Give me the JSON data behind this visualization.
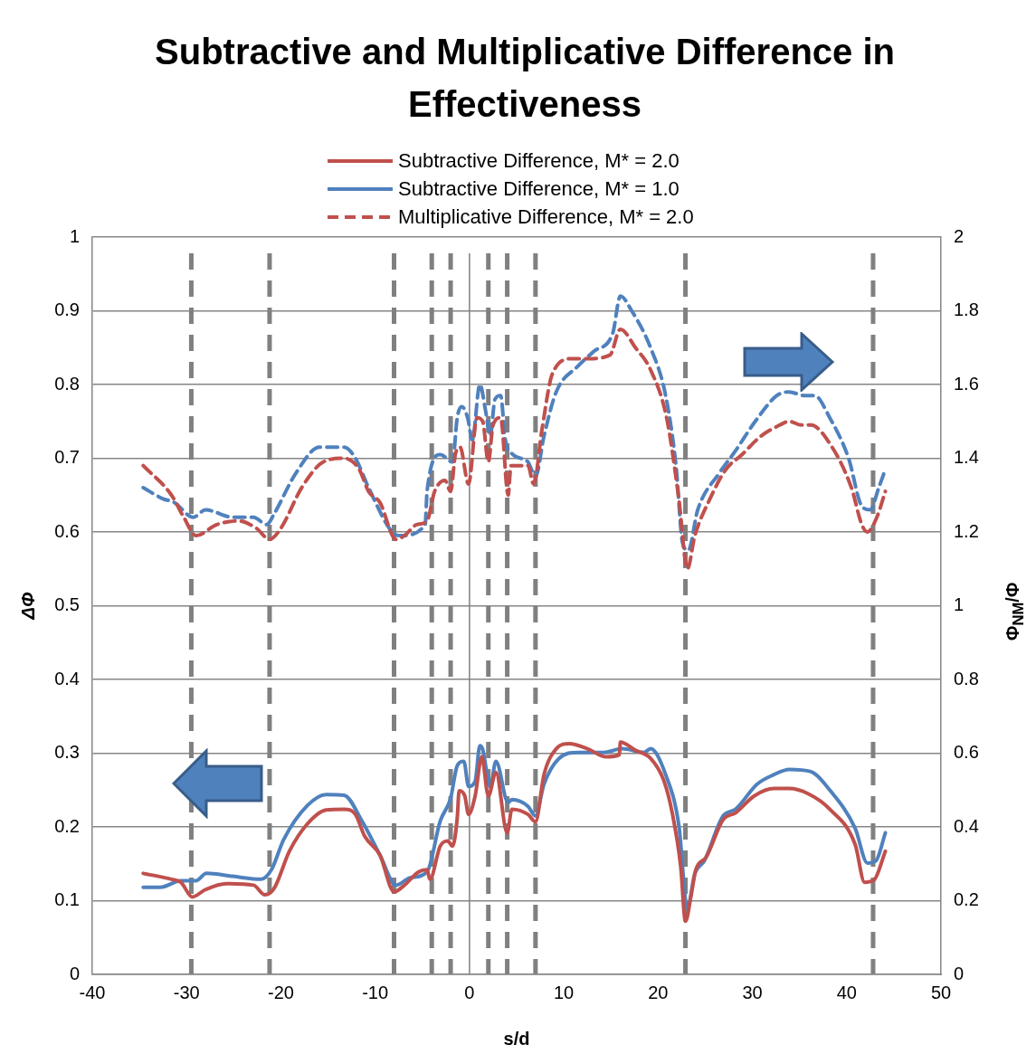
{
  "chart_data": {
    "type": "line",
    "title": "Subtractive and Multiplicative Difference in Effectiveness",
    "xlabel": "s/d",
    "ylabel": "ΔΦ",
    "y2label": "Φ$_{NM}$/Φ",
    "xlim": [
      -40,
      50
    ],
    "xticks": [
      -40,
      -30,
      -20,
      -10,
      0,
      10,
      20,
      30,
      40,
      50
    ],
    "ylim": [
      0,
      1
    ],
    "yticks": [
      0,
      0.1,
      0.2,
      0.3,
      0.4,
      0.5,
      0.6,
      0.7,
      0.8,
      0.9,
      1
    ],
    "y2lim": [
      0,
      2
    ],
    "y2ticks": [
      0,
      0.2,
      0.4,
      0.6,
      0.8,
      1,
      1.2,
      1.4,
      1.6,
      1.8,
      2
    ],
    "grid": "y",
    "legend": "top",
    "series": [
      {
        "name": "Subtractive Difference, M* = 2.0",
        "color": "#c0504d",
        "line_style": "solid",
        "x": [
          -34.6,
          -31.6,
          -30.6,
          -29.4,
          -28,
          -25.8,
          -22.9,
          -21.7,
          -20.7,
          -19.1,
          -17.2,
          -15.2,
          -13.3,
          -12.1,
          -11.1,
          -9.5,
          -8,
          -6.9,
          -5.4,
          -4.5,
          -4.2,
          -3.1,
          -2.3,
          -1.8,
          -1.3,
          -1.1,
          -0.5,
          -0.1,
          0.6,
          1.3,
          2,
          2.8,
          4,
          4.5,
          6.2,
          7,
          7.9,
          9.2,
          10.6,
          12.5,
          14.5,
          15.9,
          16,
          17.6,
          19.2,
          20.6,
          21.5,
          22.4,
          22.9,
          23.5,
          24,
          25.1,
          26.9,
          28.2,
          30.2,
          32.3,
          33.9,
          35.9,
          38.2,
          40.9,
          41.9,
          42.9,
          44.1
        ],
        "values": [
          0.137,
          0.129,
          0.125,
          0.105,
          0.115,
          0.123,
          0.121,
          0.108,
          0.117,
          0.167,
          0.204,
          0.223,
          0.224,
          0.217,
          0.187,
          0.162,
          0.112,
          0.121,
          0.139,
          0.142,
          0.129,
          0.174,
          0.181,
          0.174,
          0.212,
          0.249,
          0.242,
          0.217,
          0.242,
          0.295,
          0.242,
          0.274,
          0.192,
          0.224,
          0.217,
          0.207,
          0.271,
          0.306,
          0.313,
          0.306,
          0.295,
          0.298,
          0.315,
          0.304,
          0.293,
          0.263,
          0.219,
          0.146,
          0.072,
          0.107,
          0.142,
          0.159,
          0.21,
          0.219,
          0.242,
          0.252,
          0.252,
          0.245,
          0.224,
          0.176,
          0.125,
          0.128,
          0.167
        ]
      },
      {
        "name": "Subtractive Difference, M* = 1.0",
        "color": "#4f81bd",
        "line_style": "solid",
        "x": [
          -34.6,
          -32.8,
          -30.6,
          -29,
          -27.9,
          -25.1,
          -22.1,
          -21,
          -19.7,
          -17.2,
          -15.2,
          -13.3,
          -11.4,
          -9.5,
          -7.8,
          -6.3,
          -4.5,
          -3.1,
          -2,
          -1.3,
          -0.6,
          -0.1,
          0.6,
          1.1,
          1.4,
          2.2,
          2.8,
          4.1,
          4.5,
          6.2,
          7,
          7.9,
          9.5,
          11.5,
          14.2,
          16.2,
          18.5,
          19.2,
          20.8,
          22.2,
          23.1,
          23.9,
          24.9,
          26.9,
          28.2,
          30.5,
          32.3,
          33.9,
          36.2,
          38.2,
          40.9,
          42.2,
          43.1,
          44.1
        ],
        "values": [
          0.118,
          0.118,
          0.127,
          0.127,
          0.137,
          0.133,
          0.129,
          0.142,
          0.183,
          0.229,
          0.244,
          0.243,
          0.208,
          0.162,
          0.121,
          0.131,
          0.139,
          0.208,
          0.239,
          0.283,
          0.289,
          0.255,
          0.262,
          0.31,
          0.305,
          0.254,
          0.289,
          0.233,
          0.237,
          0.228,
          0.215,
          0.258,
          0.293,
          0.301,
          0.301,
          0.306,
          0.301,
          0.306,
          0.271,
          0.202,
          0.09,
          0.137,
          0.154,
          0.215,
          0.224,
          0.258,
          0.271,
          0.278,
          0.275,
          0.25,
          0.198,
          0.151,
          0.154,
          0.192
        ]
      },
      {
        "name": "Multiplicative Difference, M* = 2.0",
        "color": "#c0504d",
        "line_style": "dashed",
        "axis": "y2",
        "x": [
          -34.6,
          -31.6,
          -30.3,
          -29,
          -26.8,
          -24.5,
          -22.6,
          -21.2,
          -20,
          -17.8,
          -15.5,
          -13.3,
          -11.7,
          -10.7,
          -9.5,
          -7.8,
          -6.9,
          -5.6,
          -4.5,
          -3.7,
          -2.6,
          -2,
          -1.5,
          -1,
          -0.1,
          0.8,
          1.4,
          2,
          2.5,
          3.3,
          4.1,
          4.4,
          6.2,
          6.8,
          7.7,
          8.8,
          10.9,
          12.5,
          14.9,
          16,
          17.6,
          19.2,
          20.9,
          22.2,
          23.1,
          23.9,
          25.5,
          27.2,
          28.9,
          30.9,
          32.9,
          33.9,
          35.2,
          36.2,
          38.2,
          40.5,
          41.6,
          42.2,
          43.2,
          44.1
        ],
        "values": [
          1.38,
          1.3,
          1.24,
          1.19,
          1.22,
          1.23,
          1.21,
          1.18,
          1.21,
          1.32,
          1.39,
          1.4,
          1.37,
          1.31,
          1.28,
          1.18,
          1.19,
          1.22,
          1.23,
          1.31,
          1.34,
          1.31,
          1.41,
          1.43,
          1.33,
          1.51,
          1.5,
          1.39,
          1.49,
          1.51,
          1.3,
          1.38,
          1.38,
          1.33,
          1.48,
          1.63,
          1.67,
          1.67,
          1.68,
          1.75,
          1.7,
          1.64,
          1.51,
          1.29,
          1.1,
          1.19,
          1.29,
          1.37,
          1.41,
          1.46,
          1.49,
          1.5,
          1.49,
          1.49,
          1.44,
          1.32,
          1.22,
          1.2,
          1.24,
          1.31
        ]
      },
      {
        "color": "#4f81bd",
        "line_style": "dashed",
        "axis": "y2",
        "x": [
          -34.6,
          -32.5,
          -31.3,
          -29.3,
          -28,
          -25.1,
          -22.9,
          -21.5,
          -20.7,
          -18.4,
          -15.9,
          -13.3,
          -12.1,
          -10.7,
          -8.2,
          -7.3,
          -4.7,
          -4.5,
          -3.1,
          -1.8,
          -1.3,
          -0.8,
          -0.2,
          0.3,
          1.1,
          1.7,
          2.2,
          2.7,
          3.3,
          3.8,
          4.6,
          6.2,
          7,
          7.9,
          9.2,
          11.5,
          13.2,
          15.2,
          16,
          17.2,
          19.2,
          20.8,
          21.9,
          22.6,
          23.2,
          24.2,
          26.5,
          28.2,
          30.3,
          32.6,
          33.9,
          35.5,
          36.6,
          38.2,
          40.2,
          41.6,
          42.5,
          43.4,
          44.1
        ],
        "values": [
          1.32,
          1.29,
          1.28,
          1.24,
          1.26,
          1.24,
          1.24,
          1.22,
          1.25,
          1.36,
          1.43,
          1.43,
          1.4,
          1.32,
          1.2,
          1.19,
          1.22,
          1.31,
          1.41,
          1.39,
          1.51,
          1.54,
          1.51,
          1.45,
          1.6,
          1.53,
          1.46,
          1.56,
          1.57,
          1.45,
          1.41,
          1.39,
          1.35,
          1.46,
          1.58,
          1.65,
          1.69,
          1.74,
          1.84,
          1.8,
          1.7,
          1.57,
          1.38,
          1.17,
          1.15,
          1.26,
          1.36,
          1.42,
          1.5,
          1.57,
          1.58,
          1.57,
          1.57,
          1.51,
          1.4,
          1.27,
          1.26,
          1.32,
          1.37
        ]
      }
    ],
    "ref_lines": [
      {
        "axis": "x",
        "value": -29.5,
        "color": "#808080",
        "line_style": "dashed"
      },
      {
        "axis": "x",
        "value": -21.2,
        "color": "#808080",
        "line_style": "dashed"
      },
      {
        "axis": "x",
        "value": -8,
        "color": "#808080",
        "line_style": "dashed"
      },
      {
        "axis": "x",
        "value": -4,
        "color": "#808080",
        "line_style": "dashed"
      },
      {
        "axis": "x",
        "value": -2,
        "color": "#808080",
        "line_style": "dashed"
      },
      {
        "axis": "x",
        "value": 0,
        "color": "#808080",
        "line_style": "solid"
      },
      {
        "axis": "x",
        "value": 2,
        "color": "#808080",
        "line_style": "dashed"
      },
      {
        "axis": "x",
        "value": 4,
        "color": "#808080",
        "line_style": "dashed"
      },
      {
        "axis": "x",
        "value": 7,
        "color": "#808080",
        "line_style": "dashed"
      },
      {
        "axis": "x",
        "value": 22.9,
        "color": "#808080",
        "line_style": "dashed"
      },
      {
        "axis": "x",
        "value": 42.8,
        "color": "#808080",
        "line_style": "dashed"
      }
    ]
  }
}
